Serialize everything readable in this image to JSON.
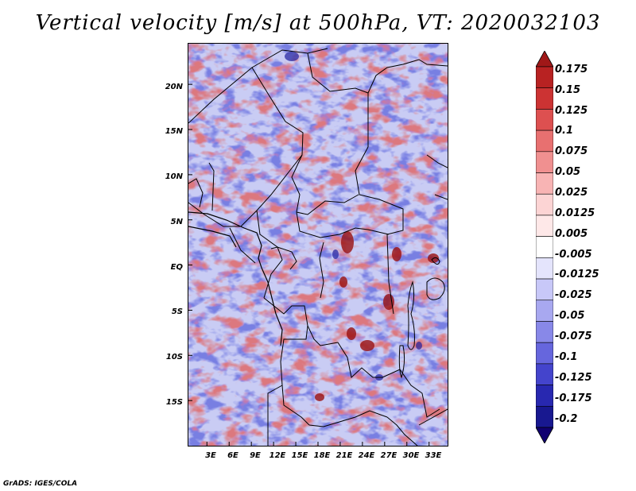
{
  "title": "Vertical velocity [m/s] at 500hPa, VT: 2020032103",
  "credit": "GrADS: IGES/COLA",
  "map": {
    "lat_labels": [
      "20N",
      "15N",
      "10N",
      "5N",
      "EQ",
      "5S",
      "10S",
      "15S"
    ],
    "lat_values": [
      20,
      15,
      10,
      5,
      0,
      -5,
      -10,
      -15
    ],
    "lon_labels": [
      "3E",
      "6E",
      "9E",
      "12E",
      "15E",
      "18E",
      "21E",
      "24E",
      "27E",
      "30E",
      "33E"
    ],
    "lon_values": [
      3,
      6,
      9,
      12,
      15,
      18,
      21,
      24,
      27,
      30,
      33
    ],
    "lat_range": [
      -20,
      24.5
    ],
    "lon_range": [
      0.5,
      35.5
    ]
  },
  "colorbar": {
    "labels": [
      "0.175",
      "0.15",
      "0.125",
      "0.1",
      "0.075",
      "0.05",
      "0.025",
      "0.0125",
      "0.005",
      "-0.005",
      "-0.0125",
      "-0.025",
      "-0.05",
      "-0.075",
      "-0.1",
      "-0.125",
      "-0.175",
      "-0.2"
    ],
    "colors": [
      "#a01818",
      "#b82222",
      "#cc3333",
      "#dd5050",
      "#e87070",
      "#f09090",
      "#f8b4b4",
      "#fcd4d4",
      "#fee8e8",
      "#ffffff",
      "#e4e4fc",
      "#c8c8f8",
      "#a8a8f0",
      "#8888e8",
      "#6666dd",
      "#4444cc",
      "#2828b0",
      "#181890",
      "#100070"
    ]
  }
}
